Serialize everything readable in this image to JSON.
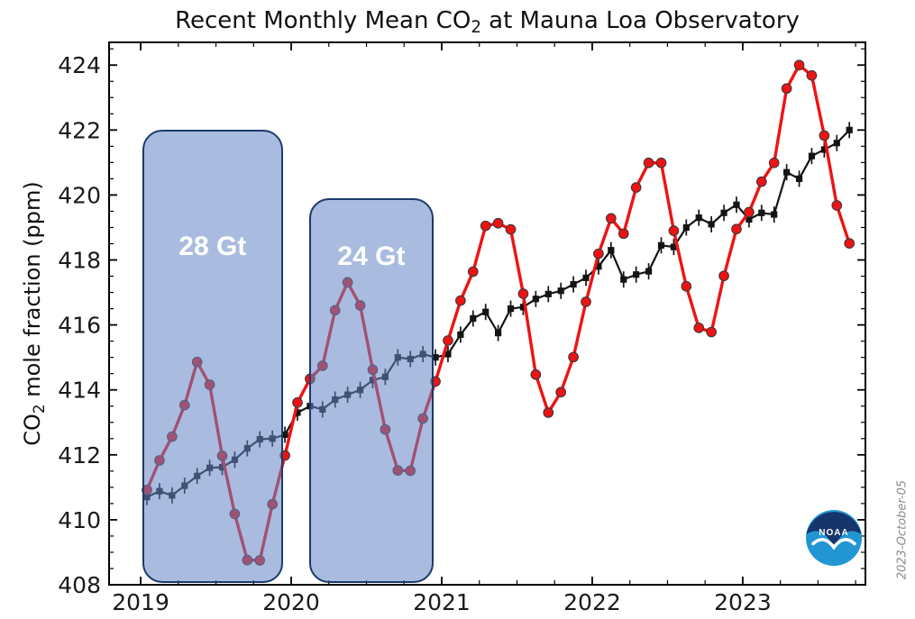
{
  "figure": {
    "watermark": "2023-October-05",
    "logo_text": "NOAA"
  },
  "chart_data": {
    "type": "line",
    "title_parts": {
      "pre": "Recent Monthly Mean CO",
      "sub": "2",
      "post": " at Mauna Loa Observatory"
    },
    "ylabel_parts": {
      "pre": "CO",
      "sub": "2",
      "post": " mole fraction (ppm)"
    },
    "xlabel": "",
    "x_start": "2019-01",
    "x_end": "2023-09",
    "points_per_year": 12,
    "xlim": [
      2018.79,
      2023.815
    ],
    "ylim": [
      408,
      424.7
    ],
    "xticks": [
      2019,
      2020,
      2021,
      2022,
      2023
    ],
    "yticks": [
      408,
      410,
      412,
      414,
      416,
      418,
      420,
      422,
      424
    ],
    "x_minor_step_years": 0.25,
    "y_minor_step_ppm": 0.5,
    "grid": false,
    "legend": "none",
    "series": [
      {
        "name": "monthly_mean",
        "color": "#ee1313",
        "marker": "circle",
        "values": [
          410.92,
          411.83,
          412.56,
          413.53,
          414.86,
          414.16,
          411.97,
          410.18,
          408.76,
          408.75,
          410.48,
          411.98,
          413.61,
          414.34,
          414.74,
          416.45,
          417.31,
          416.6,
          414.62,
          412.78,
          411.52,
          411.51,
          413.12,
          414.26,
          415.52,
          416.75,
          417.64,
          419.05,
          419.13,
          418.94,
          416.96,
          414.47,
          413.3,
          413.93,
          415.01,
          416.71,
          418.19,
          419.28,
          418.81,
          420.23,
          420.99,
          420.99,
          418.9,
          417.19,
          415.91,
          415.78,
          417.51,
          418.95,
          419.47,
          420.41,
          420.99,
          423.28,
          424.0,
          423.68,
          421.83,
          419.68,
          418.51
        ]
      },
      {
        "name": "trend_seasonally_corrected",
        "color": "#141414",
        "marker": "square",
        "error_ppm": 0.25,
        "values": [
          410.7,
          410.88,
          410.75,
          411.05,
          411.35,
          411.6,
          411.62,
          411.85,
          412.2,
          412.48,
          412.5,
          412.62,
          413.3,
          413.5,
          413.4,
          413.7,
          413.85,
          414.0,
          414.3,
          414.4,
          415.0,
          414.95,
          415.1,
          415.0,
          415.1,
          415.7,
          416.2,
          416.4,
          415.75,
          416.5,
          416.55,
          416.8,
          416.95,
          417.05,
          417.25,
          417.45,
          417.8,
          418.3,
          417.4,
          417.55,
          417.65,
          418.45,
          418.4,
          419.0,
          419.3,
          419.1,
          419.45,
          419.7,
          419.25,
          419.45,
          419.4,
          420.7,
          420.5,
          421.2,
          421.4,
          421.6,
          422.0
        ]
      }
    ],
    "annotations": [
      {
        "label": "28 Gt",
        "t0": 2019.01,
        "t1": 2019.95,
        "top_ppm": 422.0,
        "label_ppm": 418.35
      },
      {
        "label": "24 Gt",
        "t0": 2020.12,
        "t1": 2020.95,
        "top_ppm": 419.9,
        "label_ppm": 418.05
      }
    ]
  }
}
